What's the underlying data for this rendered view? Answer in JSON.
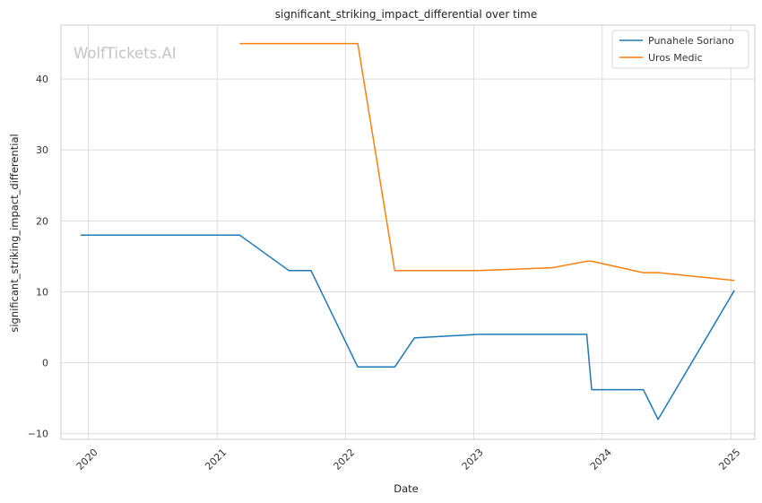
{
  "watermark": "WolfTickets.AI",
  "chart_data": {
    "type": "line",
    "title": "significant_striking_impact_differential over time",
    "xlabel": "Date",
    "ylabel": "significant_striking_impact_differential",
    "x_axis_type": "date",
    "xlim": [
      "2019-10-15",
      "2025-03-10"
    ],
    "ylim": [
      -10.8,
      47.6
    ],
    "x_ticks": [
      "2020",
      "2021",
      "2022",
      "2023",
      "2024",
      "2025"
    ],
    "y_ticks": [
      -10,
      0,
      10,
      20,
      30,
      40
    ],
    "grid": true,
    "legend_position": "top-right",
    "series": [
      {
        "name": "Punahele Soriano",
        "color": "#1f77b4",
        "points": [
          [
            "2019-12-10",
            18.0
          ],
          [
            "2021-03-06",
            18.0
          ],
          [
            "2021-07-24",
            13.0
          ],
          [
            "2021-09-25",
            13.0
          ],
          [
            "2022-02-05",
            -0.6
          ],
          [
            "2022-05-21",
            -0.6
          ],
          [
            "2022-07-16",
            3.5
          ],
          [
            "2023-01-14",
            4.0
          ],
          [
            "2023-11-18",
            4.0
          ],
          [
            "2023-12-02",
            -3.8
          ],
          [
            "2024-04-27",
            -3.8
          ],
          [
            "2024-06-08",
            -8.0
          ],
          [
            "2025-01-11",
            10.2
          ]
        ]
      },
      {
        "name": "Uros Medic",
        "color": "#ff7f0e",
        "points": [
          [
            "2021-03-06",
            45.0
          ],
          [
            "2022-02-05",
            45.0
          ],
          [
            "2022-05-21",
            13.0
          ],
          [
            "2023-01-14",
            13.0
          ],
          [
            "2023-08-12",
            13.4
          ],
          [
            "2023-11-18",
            14.3
          ],
          [
            "2023-12-02",
            14.3
          ],
          [
            "2024-04-27",
            12.7
          ],
          [
            "2024-06-08",
            12.7
          ],
          [
            "2025-01-11",
            11.6
          ]
        ]
      }
    ]
  }
}
